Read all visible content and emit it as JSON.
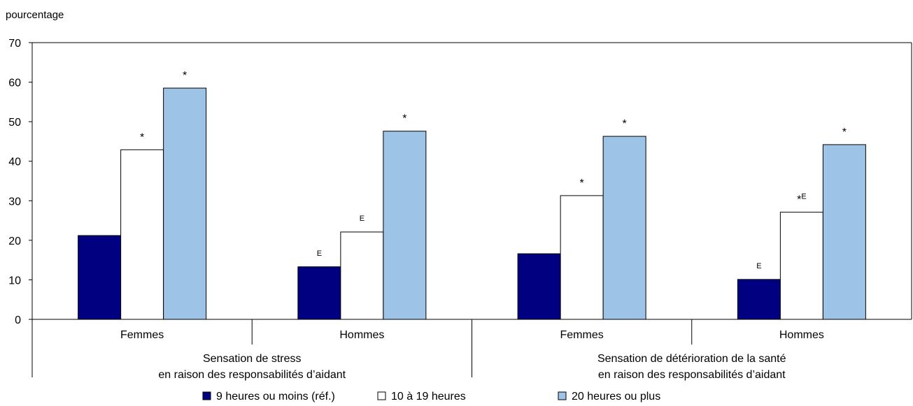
{
  "chart_data": {
    "type": "bar",
    "ylabel": "pourcentage",
    "ylim": [
      0,
      70
    ],
    "yticks": [
      0,
      10,
      20,
      30,
      40,
      50,
      60,
      70
    ],
    "grid": false,
    "legend_position": "bottom",
    "groups": [
      {
        "label_lines": [
          "Sensation de stress",
          "en raison des responsabilités d’aidant"
        ],
        "span": [
          0,
          1
        ]
      },
      {
        "label_lines": [
          "Sensation de détérioration de la santé",
          "en raison des responsabilités d’aidant"
        ],
        "span": [
          2,
          3
        ]
      }
    ],
    "categories": [
      "Femmes",
      "Hommes",
      "Femmes",
      "Hommes"
    ],
    "series": [
      {
        "name": "9 heures ou moins (réf.)",
        "color": "#000080",
        "outline": "#000000",
        "values": [
          21.2,
          13.3,
          16.6,
          10.1
        ],
        "marks": [
          "",
          "E",
          "",
          "E"
        ]
      },
      {
        "name": "10 à 19 heures",
        "color": "#ffffff",
        "outline": "#000000",
        "values": [
          42.9,
          22.1,
          31.3,
          27.1
        ],
        "marks": [
          "*",
          "E",
          "*",
          "*E"
        ]
      },
      {
        "name": "20 heures ou plus",
        "color": "#9dc3e6",
        "outline": "#000000",
        "values": [
          58.5,
          47.6,
          46.3,
          44.2
        ],
        "marks": [
          "*",
          "*",
          "*",
          "*"
        ]
      }
    ]
  }
}
